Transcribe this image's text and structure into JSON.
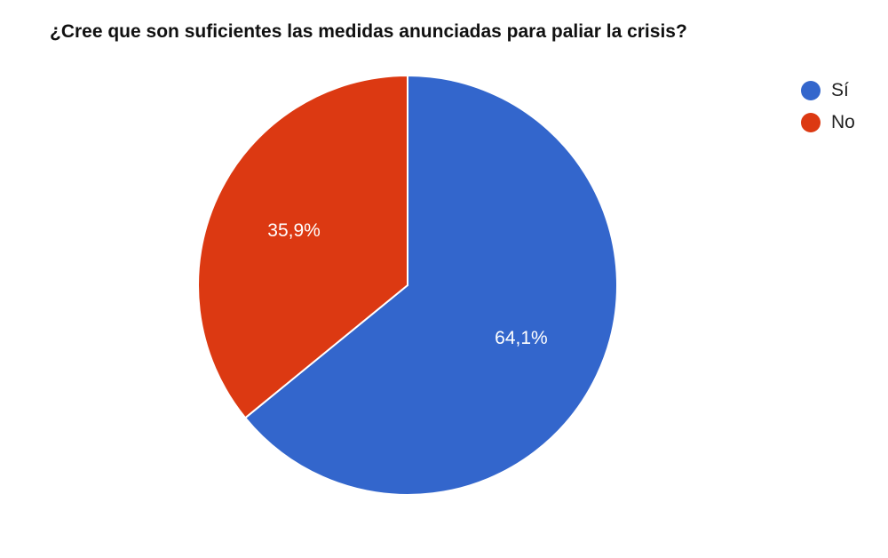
{
  "chart_data": {
    "type": "pie",
    "title": "¿Cree que son suficientes las medidas anunciadas para paliar la crisis?",
    "slices": [
      {
        "label": "Sí",
        "value": 64.1,
        "display": "64,1%",
        "color": "#3366cc"
      },
      {
        "label": "No",
        "value": 35.9,
        "display": "35,9%",
        "color": "#dc3912"
      }
    ],
    "legend_position": "top-right",
    "start_angle": "12 o'clock",
    "direction": "clockwise"
  }
}
